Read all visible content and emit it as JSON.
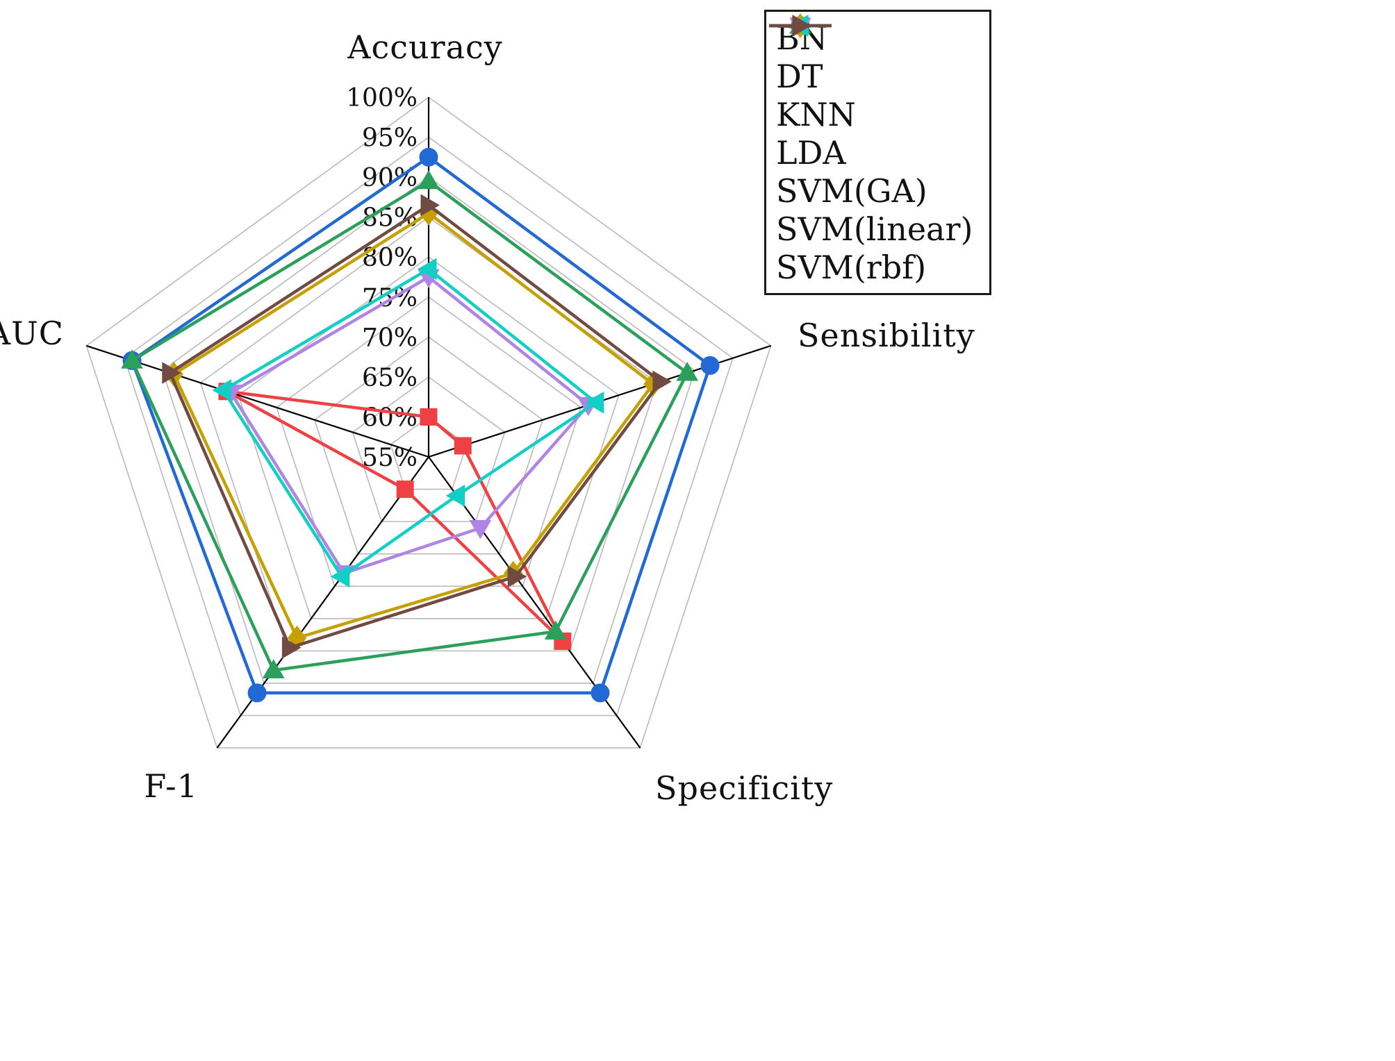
{
  "chart_data": {
    "type": "radar",
    "axes": [
      "Accuracy",
      "Sensibility",
      "Specificity",
      "F-1",
      "AUC"
    ],
    "radial_axis": {
      "min": 55,
      "max": 100,
      "step": 5,
      "unit": "%",
      "tick_labels": [
        "100%",
        "95%",
        "90%",
        "85%",
        "80%",
        "75%",
        "70%",
        "65%",
        "60%",
        "55%"
      ]
    },
    "grid": true,
    "grid_color": "#b9b9b9",
    "axis_color": "#000000",
    "legend_position": "top-right",
    "series": [
      {
        "name": "BN",
        "color": "#ef4143",
        "marker": "square",
        "values": [
          60,
          59.5,
          83.5,
          60,
          81.5
        ]
      },
      {
        "name": "DT",
        "color": "#2269d3",
        "marker": "circle",
        "values": [
          92.5,
          92,
          91.5,
          91.5,
          94
        ]
      },
      {
        "name": "KNN",
        "color": "#2aa05a",
        "marker": "triangle-up",
        "values": [
          89.5,
          89,
          82,
          88,
          94
        ]
      },
      {
        "name": "LDA",
        "color": "#b084e4",
        "marker": "triangle-down",
        "values": [
          77.5,
          76,
          66,
          73,
          81
        ]
      },
      {
        "name": "SVM(GA)",
        "color": "#c5a000",
        "marker": "diamond",
        "values": [
          85.5,
          84.5,
          73,
          83,
          88.5
        ]
      },
      {
        "name": "SVM(linear)",
        "color": "#12cfc6",
        "marker": "triangle-left",
        "values": [
          78.5,
          77,
          61,
          73.5,
          82
        ]
      },
      {
        "name": "SVM(rbf)",
        "color": "#714a42",
        "marker": "triangle-right",
        "values": [
          86.5,
          85.5,
          73.5,
          84.5,
          89
        ]
      }
    ]
  }
}
